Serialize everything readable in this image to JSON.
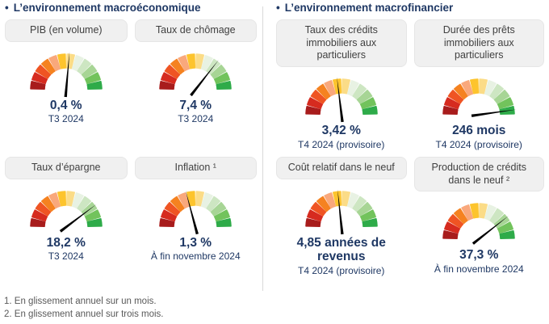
{
  "columns": [
    {
      "bullet": "•",
      "header": "L’environnement macroéconomique"
    },
    {
      "bullet": "•",
      "header": "L’environnement macrofinancier"
    }
  ],
  "footnotes": [
    "1. En glissement annuel sur un mois.",
    "2. En glissement annuel sur trois mois."
  ],
  "colors": {
    "navy": "#1f3864",
    "pill_bg": "#f0f0f0",
    "pill_text": "#404040",
    "footnote_gray": "#595959",
    "divider_gray": "#d9d9d9",
    "needle": "#000000",
    "segment_palette": [
      "#a81c1c",
      "#d62b1f",
      "#ef5423",
      "#f58220",
      "#f9a87c",
      "#fdc42d",
      "#fbdc87",
      "#e8f2e3",
      "#cde6c2",
      "#a7d595",
      "#72c35c",
      "#2eab49"
    ]
  },
  "gauge_style": {
    "segments": 12,
    "arc_span_deg": 180,
    "segment_gap_deg": 3.2
  },
  "chart_data": [
    {
      "type": "gauge",
      "column": 0,
      "group": "L’environnement macroéconomique",
      "label": "PIB (en volume)",
      "value_label": "0,4 %",
      "value": 0.4,
      "unit": "%",
      "period": "T3 2024",
      "needle_deg_from_vertical": 5
    },
    {
      "type": "gauge",
      "column": 0,
      "group": "L’environnement macroéconomique",
      "label": "Taux de chômage",
      "value_label": "7,4 %",
      "value": 7.4,
      "unit": "%",
      "period": "T3 2024",
      "needle_deg_from_vertical": 38
    },
    {
      "type": "gauge",
      "column": 0,
      "group": "L’environnement macroéconomique",
      "label": "Taux d’épargne",
      "value_label": "18,2 %",
      "value": 18.2,
      "unit": "%",
      "period": "T3 2024",
      "needle_deg_from_vertical": 53
    },
    {
      "type": "gauge",
      "column": 0,
      "group": "L’environnement macroéconomique",
      "label": "Inflation ¹",
      "value_label": "1,3 %",
      "value": 1.3,
      "unit": "%",
      "period": "À fin novembre 2024",
      "needle_deg_from_vertical": -15
    },
    {
      "type": "gauge",
      "column": 1,
      "group": "L’environnement macrofinancier",
      "label": "Taux des crédits immobiliers aux particuliers",
      "value_label": "3,42 %",
      "value": 3.42,
      "unit": "%",
      "period": "T4 2024 (provisoire)",
      "needle_deg_from_vertical": -7
    },
    {
      "type": "gauge",
      "column": 1,
      "group": "L’environnement macrofinancier",
      "label": "Durée des prêts immobiliers aux particuliers",
      "value_label": "246 mois",
      "value": 246,
      "unit": "mois",
      "period": "T4 2024 (provisoire)",
      "needle_deg_from_vertical": 82
    },
    {
      "type": "gauge",
      "column": 1,
      "group": "L’environnement macrofinancier",
      "label": "Coût relatif dans le neuf",
      "value_label": "4,85 années de revenus",
      "value": 4.85,
      "unit": "années de revenus",
      "period": "T4 2024 (provisoire)",
      "needle_deg_from_vertical": -6
    },
    {
      "type": "gauge",
      "column": 1,
      "group": "L’environnement macrofinancier",
      "label": "Production de crédits dans le neuf ²",
      "value_label": "37,3 %",
      "value": 37.3,
      "unit": "%",
      "period": "À fin novembre 2024",
      "needle_deg_from_vertical": 52
    }
  ]
}
